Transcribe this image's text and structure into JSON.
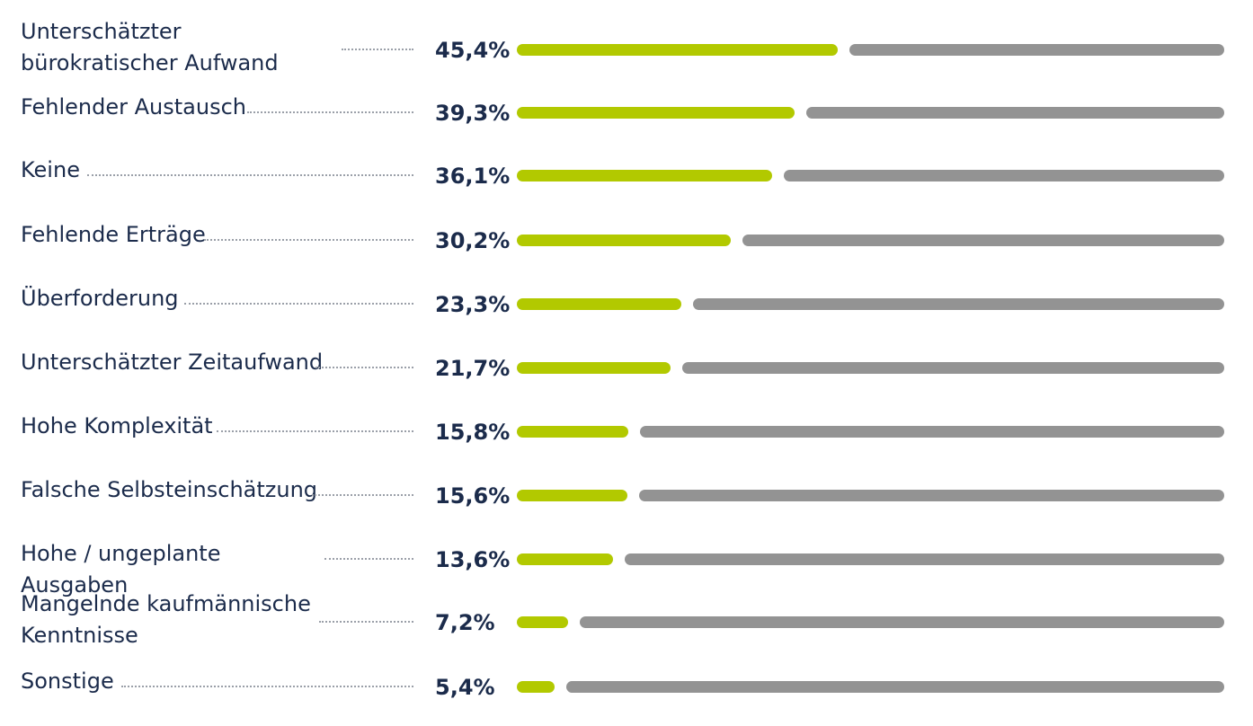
{
  "chart_data": {
    "type": "bar",
    "orientation": "horizontal",
    "categories": [
      "Unterschätzter bürokratischer Aufwand",
      "Fehlender Austausch",
      "Keine",
      "Fehlende Erträge",
      "Überforderung",
      "Unterschätzter Zeitaufwand",
      "Hohe Komplexität",
      "Falsche Selbsteinschätzung",
      "Hohe / ungeplante Ausgaben",
      "Mangelnde kaufmännische Kenntnisse",
      "Sonstige"
    ],
    "values": [
      45.4,
      39.3,
      36.1,
      30.2,
      23.3,
      21.7,
      15.8,
      15.6,
      13.6,
      7.2,
      5.4
    ],
    "value_labels": [
      "45,4%",
      "39,3%",
      "36,1%",
      "30,2%",
      "23,3%",
      "21,7%",
      "15,8%",
      "15,6%",
      "13,6%",
      "7,2%",
      "5,4%"
    ],
    "xlim": [
      0,
      100
    ],
    "grid": false,
    "legend": "none",
    "colors": {
      "value_bar": "#b2c900",
      "remainder_bar": "#939393",
      "text": "#1b2b4b",
      "dots": "#9a9fa8"
    }
  }
}
